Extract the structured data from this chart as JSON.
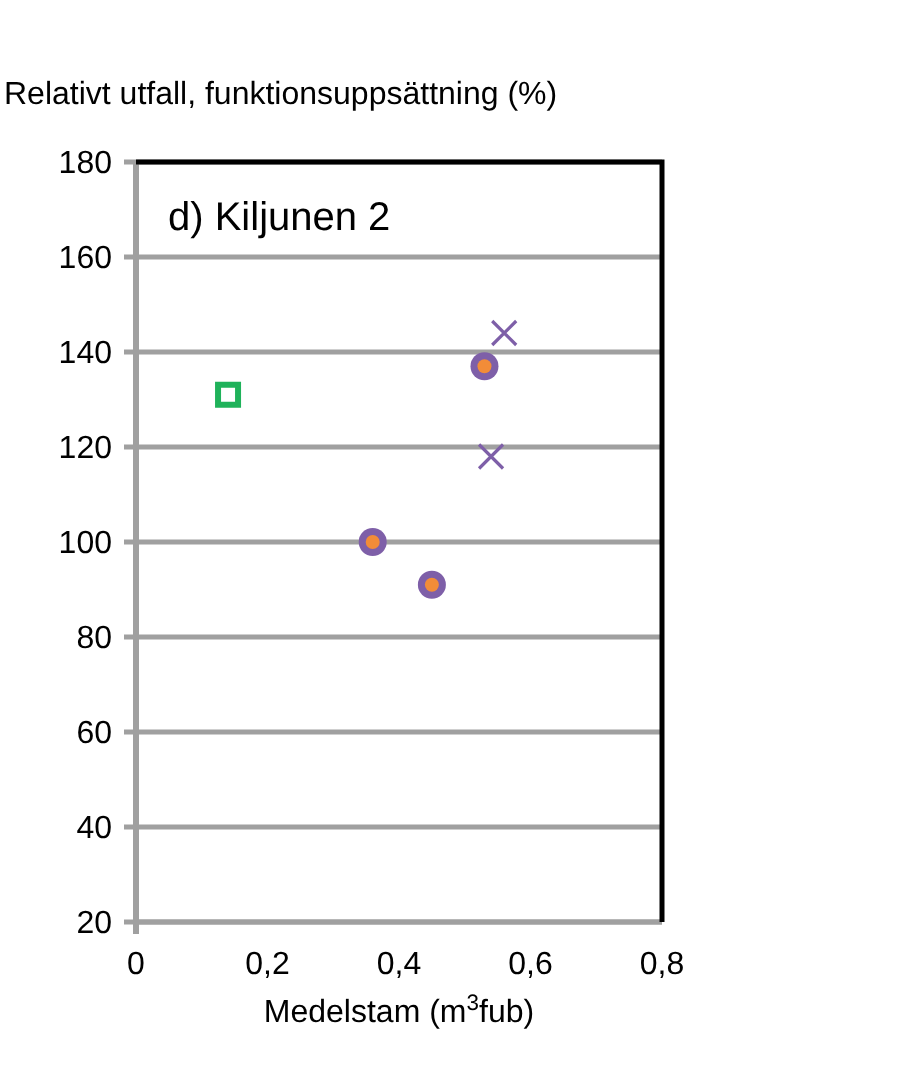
{
  "chart_data": {
    "type": "scatter",
    "ylabel": "Relativt utfall, funktionsuppsättning (%)",
    "xlabel": "Medelstam (m$^{3}$fub)",
    "annotations": [
      "d) Kiljunen 2"
    ],
    "xlim": [
      0,
      0.8
    ],
    "xticks": [
      0,
      {
        "value": 0.2,
        "label": "0,2"
      },
      {
        "value": 0.4,
        "label": "0,4"
      },
      {
        "value": 0.6,
        "label": "0,6"
      },
      {
        "value": 0.8,
        "label": "0,8"
      }
    ],
    "ylim": [
      20,
      180
    ],
    "yticks": [
      20,
      40,
      60,
      80,
      100,
      120,
      140,
      160,
      180
    ],
    "grid": "y",
    "series": [
      {
        "color": "#1fb25a",
        "marker": "square",
        "x": [
          0.14
        ],
        "values": [
          131
        ]
      },
      {
        "color": "#7e5fa8",
        "marker": "circle",
        "x": [
          0.36,
          0.45,
          0.53
        ],
        "values": [
          100,
          91,
          137
        ]
      },
      {
        "color": "#f28c38",
        "marker": "circle",
        "x": [
          0.36,
          0.45,
          0.53
        ],
        "values": [
          100,
          91,
          137
        ]
      },
      {
        "color": "#7e5fa8",
        "marker": "cross",
        "x": [
          0.54,
          0.56
        ],
        "values": [
          118,
          144
        ]
      }
    ]
  }
}
